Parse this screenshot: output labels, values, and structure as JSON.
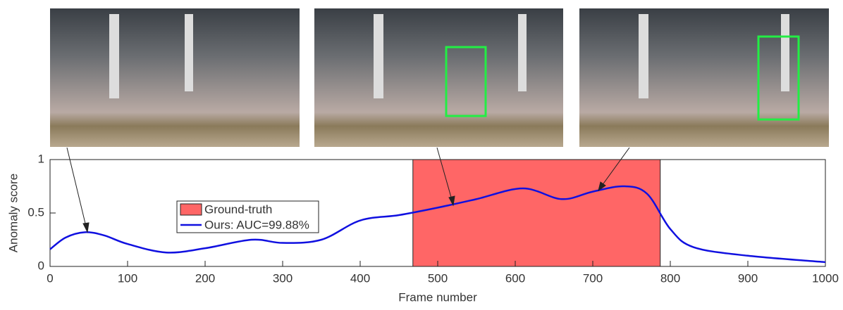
{
  "chart_data": {
    "type": "line",
    "xlabel": "Frame number",
    "ylabel": "Anomaly score",
    "x": [
      0,
      20,
      45,
      70,
      100,
      150,
      200,
      260,
      300,
      350,
      400,
      450,
      500,
      550,
      610,
      660,
      700,
      740,
      770,
      800,
      830,
      900,
      1000
    ],
    "series": [
      {
        "name": "Ours: AUC=99.88%",
        "color": "#1010e0",
        "values": [
          0.16,
          0.27,
          0.32,
          0.29,
          0.21,
          0.13,
          0.17,
          0.25,
          0.22,
          0.25,
          0.43,
          0.48,
          0.55,
          0.63,
          0.73,
          0.63,
          0.7,
          0.75,
          0.68,
          0.35,
          0.18,
          0.1,
          0.04
        ]
      }
    ],
    "ground_truth": {
      "name": "Ground-truth",
      "color": "#ff6666",
      "x_range": [
        468,
        787
      ]
    },
    "xlim": [
      0,
      1000
    ],
    "xticks": [
      0,
      100,
      200,
      300,
      400,
      500,
      600,
      700,
      800,
      900,
      1000
    ],
    "ylim": [
      0,
      1
    ],
    "yticks": [
      0,
      0.5,
      1
    ],
    "grid": false
  }
}
